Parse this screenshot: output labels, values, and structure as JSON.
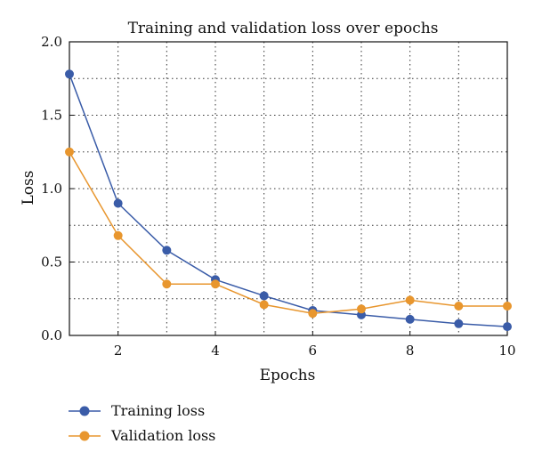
{
  "chart_data": {
    "type": "line",
    "title": "Training and validation loss over epochs",
    "xlabel": "Epochs",
    "ylabel": "Loss",
    "x": [
      1,
      2,
      3,
      4,
      5,
      6,
      7,
      8,
      9,
      10
    ],
    "xlim": [
      1,
      10
    ],
    "ylim": [
      0,
      2
    ],
    "xticks": [
      2,
      4,
      6,
      8,
      10
    ],
    "xtick_labels": [
      "2",
      "4",
      "6",
      "8",
      "10"
    ],
    "yticks": [
      0,
      0.5,
      1.0,
      1.5,
      2.0
    ],
    "ytick_labels": [
      "0.0",
      "0.5",
      "1.0",
      "1.5",
      "2.0"
    ],
    "grid": true,
    "legend_position": "bottom-left, below plot",
    "series": [
      {
        "name": "Training loss",
        "color": "#3a5ca8",
        "values": [
          1.78,
          0.9,
          0.58,
          0.38,
          0.27,
          0.17,
          0.14,
          0.11,
          0.08,
          0.06
        ]
      },
      {
        "name": "Validation loss",
        "color": "#e8962e",
        "values": [
          1.25,
          0.68,
          0.35,
          0.35,
          0.21,
          0.15,
          0.18,
          0.24,
          0.2,
          0.2
        ]
      }
    ]
  }
}
